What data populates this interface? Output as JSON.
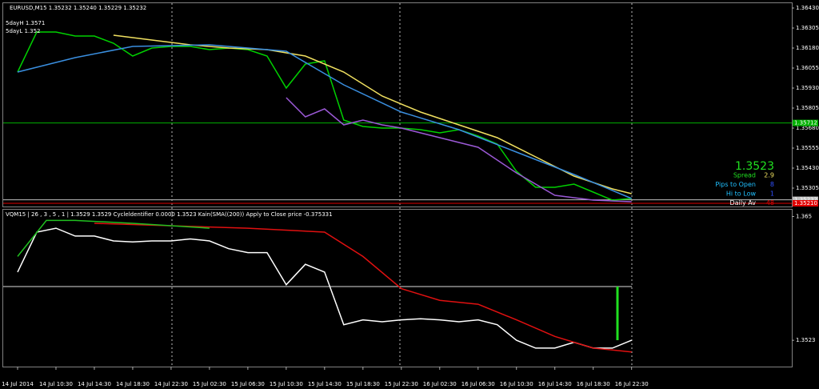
{
  "chart_data": [
    {
      "type": "line",
      "title": "EURUSD,M15  1.35232 1.35240 1.35229 1.35232",
      "annotations": [
        "5dayH 1.3571",
        "5dayL 1.352"
      ],
      "xlim": [
        -1.5,
        80.7
      ],
      "ylim": [
        1.3519,
        1.3646
      ],
      "yticks": [
        {
          "value": 1.3643,
          "label": "1.36430"
        },
        {
          "value": 1.36305,
          "label": "1.36305"
        },
        {
          "value": 1.3618,
          "label": "1.36180"
        },
        {
          "value": 1.36055,
          "label": "1.36055"
        },
        {
          "value": 1.3593,
          "label": "1.35930"
        },
        {
          "value": 1.35805,
          "label": "1.35805"
        },
        {
          "value": 1.3568,
          "label": "1.35680"
        },
        {
          "value": 1.35555,
          "label": "1.35555"
        },
        {
          "value": 1.3543,
          "label": "1.35430"
        },
        {
          "value": 1.35305,
          "label": "1.35305"
        }
      ],
      "hlines": [
        {
          "value": 1.35712,
          "label": "1.35712",
          "color": "#00b000"
        },
        {
          "value": 1.35232,
          "label": "1.35232",
          "color": "#c0c0c0"
        },
        {
          "value": 1.3521,
          "label": "1.35210",
          "color": "#e00000"
        }
      ],
      "series": [
        {
          "color": "#00d000",
          "x": [
            0,
            2,
            4,
            6,
            8,
            10,
            12,
            14,
            16,
            18,
            20,
            22,
            24,
            26,
            28,
            30,
            32,
            34,
            36,
            38,
            40,
            42,
            44,
            46,
            48,
            50,
            52,
            54,
            56,
            58,
            60,
            62,
            64
          ],
          "values": [
            1.3603,
            1.3628,
            1.3628,
            1.36255,
            1.36255,
            1.3621,
            1.3613,
            1.3618,
            1.3619,
            1.3619,
            1.3617,
            1.3618,
            1.3617,
            1.3613,
            1.3593,
            1.3608,
            1.361,
            1.3573,
            1.3569,
            1.3568,
            1.3568,
            1.3567,
            1.3565,
            1.3567,
            1.3563,
            1.3558,
            1.3541,
            1.3531,
            1.3531,
            1.3533,
            1.3528,
            1.3523,
            1.3524
          ]
        },
        {
          "color": "#f0e060",
          "x": [
            10,
            14,
            18,
            22,
            26,
            30,
            34,
            38,
            42,
            46,
            50,
            54,
            58,
            62,
            64
          ],
          "values": [
            1.3626,
            1.3623,
            1.362,
            1.3618,
            1.3617,
            1.3613,
            1.3603,
            1.3588,
            1.3578,
            1.357,
            1.3562,
            1.355,
            1.3538,
            1.353,
            1.3527
          ]
        },
        {
          "color": "#3a8fe0",
          "x": [
            0,
            6,
            12,
            20,
            28,
            34,
            40,
            46,
            52,
            58,
            64
          ],
          "values": [
            1.3603,
            1.3612,
            1.3619,
            1.362,
            1.3616,
            1.3595,
            1.3578,
            1.3567,
            1.3553,
            1.3539,
            1.3524
          ]
        },
        {
          "color": "#9b59d6",
          "x": [
            28,
            30,
            32,
            34,
            36,
            38,
            40,
            44,
            48,
            52,
            56,
            60,
            64
          ],
          "values": [
            1.3587,
            1.3575,
            1.358,
            1.357,
            1.3573,
            1.357,
            1.3568,
            1.3562,
            1.3556,
            1.354,
            1.3526,
            1.3523,
            1.3522
          ]
        }
      ],
      "info": {
        "price": "1.3523",
        "rows": [
          {
            "label": "Spread",
            "value": "2.9",
            "color": "#f0e060"
          },
          {
            "label": "Pips to Open",
            "value": "8",
            "color": "#3050ff"
          },
          {
            "label": "Hi to Low",
            "value": "1",
            "color": "#3050ff"
          },
          {
            "label": "Daily Av",
            "value": "48",
            "color": "#e00000"
          }
        ]
      }
    },
    {
      "type": "line",
      "title": "VQM15 | 26 , 3 , 5 , 1 | 1.3529 1.3529 Cycleldentifier 0.0000 1.3523 Kain(SMA((200)) Apply to Close price -0.375331",
      "xlim": [
        -1.5,
        80.7
      ],
      "ylim": [
        1.3496,
        1.3657
      ],
      "yticks": [
        1.365,
        1.3523
      ],
      "xticks": [
        {
          "value": 0,
          "label": "14 Jul 2014"
        },
        {
          "value": 4,
          "label": "14 Jul 10:30"
        },
        {
          "value": 8,
          "label": "14 Jul 14:30"
        },
        {
          "value": 12,
          "label": "14 Jul 18:30"
        },
        {
          "value": 16,
          "label": "14 Jul 22:30"
        },
        {
          "value": 20,
          "label": "15 Jul 02:30"
        },
        {
          "value": 24,
          "label": "15 Jul 06:30"
        },
        {
          "value": 28,
          "label": "15 Jul 10:30"
        },
        {
          "value": 32,
          "label": "15 Jul 14:30"
        },
        {
          "value": 36,
          "label": "15 Jul 18:30"
        },
        {
          "value": 40,
          "label": "15 Jul 22:30"
        },
        {
          "value": 44,
          "label": "16 Jul 02:30"
        },
        {
          "value": 48,
          "label": "16 Jul 06:30"
        },
        {
          "value": 52,
          "label": "16 Jul 10:30"
        },
        {
          "value": 56,
          "label": "16 Jul 14:30"
        },
        {
          "value": 60,
          "label": "16 Jul 18:30"
        },
        {
          "value": 64,
          "label": "16 Jul 22:30"
        }
      ],
      "series": [
        {
          "color": "#ffffff",
          "x": [
            0,
            2,
            4,
            6,
            8,
            10,
            12,
            14,
            16,
            18,
            20,
            22,
            24,
            26,
            28,
            30,
            32,
            34,
            36,
            38,
            40,
            42,
            44,
            46,
            48,
            50,
            52,
            54,
            56,
            58,
            60,
            62,
            64
          ],
          "values": [
            1.3593,
            1.3634,
            1.3638,
            1.363,
            1.363,
            1.3625,
            1.3624,
            1.3625,
            1.3625,
            1.3627,
            1.3625,
            1.3617,
            1.3613,
            1.3613,
            1.358,
            1.3601,
            1.3593,
            1.3539,
            1.3544,
            1.3542,
            1.3544,
            1.3545,
            1.3544,
            1.3542,
            1.3544,
            1.3539,
            1.3523,
            1.3515,
            1.3515,
            1.3521,
            1.3515,
            1.3515,
            1.3523
          ]
        },
        {
          "color": "#e01010",
          "x": [
            8,
            24,
            32,
            36,
            40,
            44,
            48,
            52,
            56,
            60,
            64
          ],
          "values": [
            1.3643,
            1.3638,
            1.3634,
            1.3609,
            1.3576,
            1.3564,
            1.356,
            1.3544,
            1.3527,
            1.3515,
            1.3511
          ]
        },
        {
          "color": "#20c020",
          "x": [
            0,
            3,
            6,
            12,
            20
          ],
          "values": [
            1.3609,
            1.3646,
            1.3646,
            1.3643,
            1.3638
          ]
        }
      ]
    }
  ]
}
